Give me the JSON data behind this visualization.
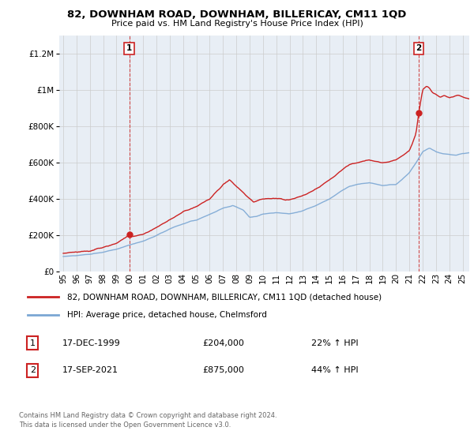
{
  "title": "82, DOWNHAM ROAD, DOWNHAM, BILLERICAY, CM11 1QD",
  "subtitle": "Price paid vs. HM Land Registry's House Price Index (HPI)",
  "ytick_values": [
    0,
    200000,
    400000,
    600000,
    800000,
    1000000,
    1200000
  ],
  "ylim": [
    0,
    1300000
  ],
  "xlim_start": 1994.7,
  "xlim_end": 2025.5,
  "xticks": [
    1995,
    1996,
    1997,
    1998,
    1999,
    2000,
    2001,
    2002,
    2003,
    2004,
    2005,
    2006,
    2007,
    2008,
    2009,
    2010,
    2011,
    2012,
    2013,
    2014,
    2015,
    2016,
    2017,
    2018,
    2019,
    2020,
    2021,
    2022,
    2023,
    2024,
    2025
  ],
  "hpi_color": "#7ba7d4",
  "price_color": "#cc2222",
  "sale1_x": 1999.96,
  "sale1_y": 204000,
  "sale2_x": 2021.71,
  "sale2_y": 875000,
  "legend_line1": "82, DOWNHAM ROAD, DOWNHAM, BILLERICAY, CM11 1QD (detached house)",
  "legend_line2": "HPI: Average price, detached house, Chelmsford",
  "ann1_date": "17-DEC-1999",
  "ann1_price": "£204,000",
  "ann1_hpi": "22% ↑ HPI",
  "ann2_date": "17-SEP-2021",
  "ann2_price": "£875,000",
  "ann2_hpi": "44% ↑ HPI",
  "footer": "Contains HM Land Registry data © Crown copyright and database right 2024.\nThis data is licensed under the Open Government Licence v3.0.",
  "bg_color": "#ffffff",
  "grid_color": "#cccccc",
  "plot_bg": "#e8eef5"
}
